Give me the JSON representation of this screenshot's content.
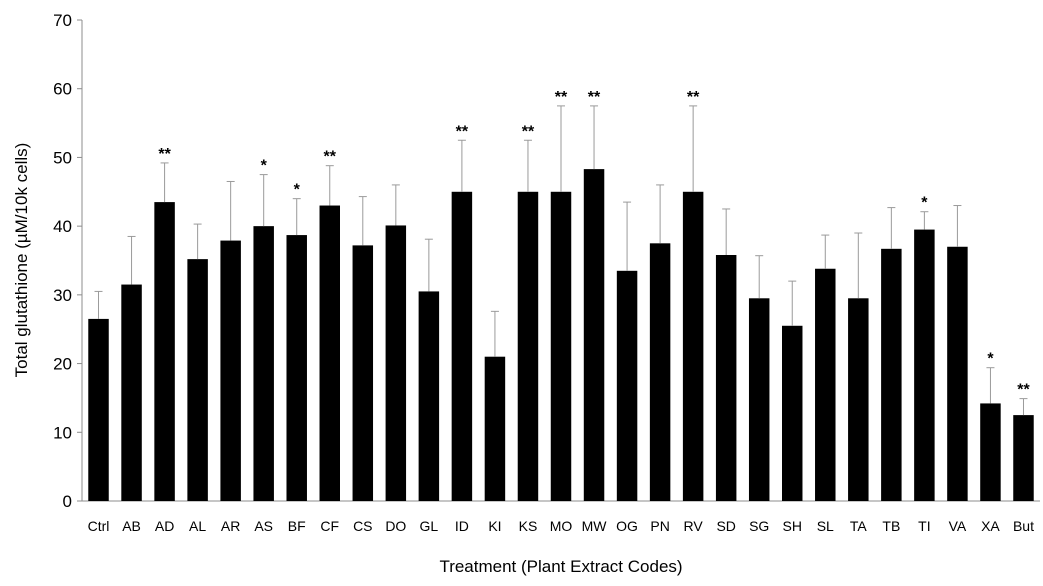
{
  "chart_data": {
    "type": "bar",
    "title": "",
    "xlabel": "Treatment (Plant Extract Codes)",
    "ylabel": "Total glutathione (µM/10k cells)",
    "ylim": [
      0,
      70
    ],
    "yticks": [
      "0",
      "10",
      "20",
      "30",
      "40",
      "50",
      "60",
      "70"
    ],
    "grid": false,
    "legend": "none",
    "bar_color": "#000000",
    "error_bar_color": "#9a9a9a",
    "categories": [
      "Ctrl",
      "AB",
      "AD",
      "AL",
      "AR",
      "AS",
      "BF",
      "CF",
      "CS",
      "DO",
      "GL",
      "ID",
      "KI",
      "KS",
      "MO",
      "MW",
      "OG",
      "PN",
      "RV",
      "SD",
      "SG",
      "SH",
      "SL",
      "TA",
      "TB",
      "TI",
      "VA",
      "XA",
      "But"
    ],
    "values": [
      26.5,
      31.5,
      43.5,
      35.2,
      37.9,
      40.0,
      38.7,
      43.0,
      37.2,
      40.1,
      30.5,
      45.0,
      21.0,
      45.0,
      45.0,
      48.3,
      33.5,
      37.5,
      45.0,
      35.8,
      29.5,
      25.5,
      33.8,
      29.5,
      36.7,
      39.5,
      37.0,
      14.2,
      12.5
    ],
    "error_upper": [
      30.5,
      38.5,
      49.2,
      40.3,
      46.5,
      47.5,
      44.0,
      48.8,
      44.3,
      46.0,
      38.1,
      52.5,
      27.6,
      52.5,
      57.5,
      57.5,
      43.5,
      46.0,
      57.5,
      42.5,
      35.7,
      32.0,
      38.7,
      39.0,
      42.7,
      42.1,
      43.0,
      19.4,
      14.9
    ],
    "significance": [
      "",
      "",
      "**",
      "",
      "",
      "*",
      "*",
      "**",
      "",
      "",
      "",
      "**",
      "",
      "**",
      "**",
      "**",
      "",
      "",
      "**",
      "",
      "",
      "",
      "",
      "",
      "",
      "*",
      "",
      "*",
      "**"
    ]
  }
}
